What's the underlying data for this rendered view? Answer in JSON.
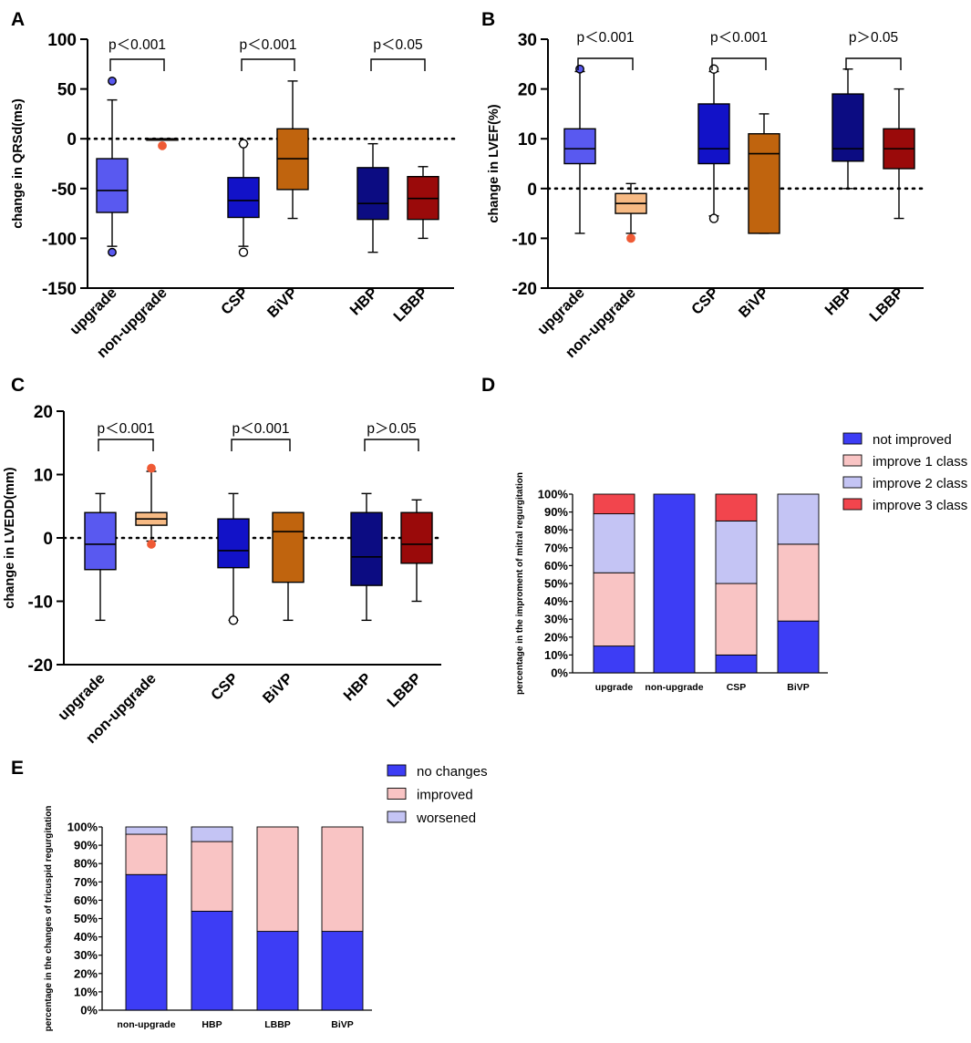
{
  "chart_data": [
    {
      "panel": "A",
      "type": "box",
      "ylabel": "change in QRSd(ms)",
      "ylim": [
        -150,
        100
      ],
      "yticks": [
        100,
        50,
        0,
        -50,
        -100,
        -150
      ],
      "reference_line": 0,
      "groups": [
        {
          "label": "upgrade",
          "color": "#5959F0",
          "whisker_low": -108,
          "q1": -74,
          "median": -52,
          "q3": -20,
          "whisker_high": 39,
          "outliers": [
            {
              "value": 58,
              "color": "#5959F0"
            },
            {
              "value": -114,
              "color": "#5959F0"
            }
          ]
        },
        {
          "label": "non-upgrade",
          "color": "#F7BA84",
          "whisker_low": 0,
          "q1": 0,
          "median": 0,
          "q3": 0,
          "whisker_high": 0,
          "outliers": [
            {
              "value": -7,
              "color": "#EF5A35"
            }
          ]
        },
        {
          "label": "CSP",
          "color": "#1212C8",
          "whisker_low": -108,
          "q1": -79,
          "median": -62,
          "q3": -39,
          "whisker_high": -5,
          "outliers": [
            {
              "value": -5,
              "color": "none"
            },
            {
              "value": -114,
              "color": "none"
            }
          ]
        },
        {
          "label": "BiVP",
          "color": "#C0640E",
          "whisker_low": -80,
          "q1": -51,
          "median": -20,
          "q3": 10,
          "whisker_high": 58,
          "outliers": []
        },
        {
          "label": "HBP",
          "color": "#0C0C82",
          "whisker_low": -114,
          "q1": -81,
          "median": -65,
          "q3": -29,
          "whisker_high": -5,
          "outliers": []
        },
        {
          "label": "LBBP",
          "color": "#9A0A0A",
          "whisker_low": -100,
          "q1": -81,
          "median": -60,
          "q3": -38,
          "whisker_high": -28,
          "outliers": []
        }
      ],
      "comparisons": [
        {
          "pair": [
            "upgrade",
            "non-upgrade"
          ],
          "label": "p＜0.001"
        },
        {
          "pair": [
            "CSP",
            "BiVP"
          ],
          "label": "p＜0.001"
        },
        {
          "pair": [
            "HBP",
            "LBBP"
          ],
          "label": "p＜0.05"
        }
      ]
    },
    {
      "panel": "B",
      "type": "box",
      "ylabel": "change in LVEF(%)",
      "ylim": [
        -20,
        30
      ],
      "yticks": [
        30,
        20,
        10,
        0,
        -10,
        -20
      ],
      "reference_line": 0,
      "groups": [
        {
          "label": "upgrade",
          "color": "#5959F0",
          "whisker_low": -9,
          "q1": 5,
          "median": 8,
          "q3": 12,
          "whisker_high": 23.5,
          "outliers": [
            {
              "value": 24,
              "color": "#5959F0"
            }
          ]
        },
        {
          "label": "non-upgrade",
          "color": "#F7BA84",
          "whisker_low": -9,
          "q1": -5,
          "median": -3,
          "q3": -1,
          "whisker_high": 1,
          "outliers": [
            {
              "value": -10,
              "color": "#EF5A35"
            }
          ]
        },
        {
          "label": "CSP",
          "color": "#1212C8",
          "whisker_low": -5.5,
          "q1": 5,
          "median": 8,
          "q3": 17,
          "whisker_high": 23.5,
          "outliers": [
            {
              "value": 24,
              "color": "none"
            },
            {
              "value": -6,
              "color": "none"
            }
          ]
        },
        {
          "label": "BiVP",
          "color": "#C0640E",
          "whisker_low": -9,
          "q1": -9,
          "median": 7,
          "q3": 11,
          "whisker_high": 15,
          "outliers": []
        },
        {
          "label": "HBP",
          "color": "#0C0C82",
          "whisker_low": 0,
          "q1": 5.5,
          "median": 8,
          "q3": 19,
          "whisker_high": 24,
          "outliers": []
        },
        {
          "label": "LBBP",
          "color": "#9A0A0A",
          "whisker_low": -6,
          "q1": 4,
          "median": 8,
          "q3": 12,
          "whisker_high": 20,
          "outliers": []
        }
      ],
      "comparisons": [
        {
          "pair": [
            "upgrade",
            "non-upgrade"
          ],
          "label": "p＜0.001"
        },
        {
          "pair": [
            "CSP",
            "BiVP"
          ],
          "label": "p＜0.001"
        },
        {
          "pair": [
            "HBP",
            "LBBP"
          ],
          "label": "p＞0.05"
        }
      ]
    },
    {
      "panel": "C",
      "type": "box",
      "ylabel": "change in LVEDD(mm)",
      "ylim": [
        -20,
        20
      ],
      "yticks": [
        20,
        10,
        0,
        -10,
        -20
      ],
      "reference_line": 0,
      "groups": [
        {
          "label": "upgrade",
          "color": "#5959F0",
          "whisker_low": -13,
          "q1": -5,
          "median": -1,
          "q3": 4,
          "whisker_high": 7,
          "outliers": []
        },
        {
          "label": "non-upgrade",
          "color": "#F7BA84",
          "whisker_low": -0.5,
          "q1": 2,
          "median": 3,
          "q3": 4,
          "whisker_high": 10.5,
          "outliers": [
            {
              "value": 11,
              "color": "#EF5A35"
            },
            {
              "value": -1,
              "color": "#EF5A35"
            }
          ]
        },
        {
          "label": "CSP",
          "color": "#1212C8",
          "whisker_low": -13,
          "q1": -4.7,
          "median": -2,
          "q3": 3,
          "whisker_high": 7,
          "outliers": [
            {
              "value": -13,
              "color": "none"
            }
          ]
        },
        {
          "label": "BiVP",
          "color": "#C0640E",
          "whisker_low": -13,
          "q1": -7,
          "median": 1,
          "q3": 4,
          "whisker_high": 4,
          "outliers": []
        },
        {
          "label": "HBP",
          "color": "#0C0C82",
          "whisker_low": -13,
          "q1": -7.5,
          "median": -3,
          "q3": 4,
          "whisker_high": 7,
          "outliers": []
        },
        {
          "label": "LBBP",
          "color": "#9A0A0A",
          "whisker_low": -10,
          "q1": -4,
          "median": -1,
          "q3": 4,
          "whisker_high": 6,
          "outliers": []
        }
      ],
      "comparisons": [
        {
          "pair": [
            "upgrade",
            "non-upgrade"
          ],
          "label": "p＜0.001"
        },
        {
          "pair": [
            "CSP",
            "BiVP"
          ],
          "label": "p＜0.001"
        },
        {
          "pair": [
            "HBP",
            "LBBP"
          ],
          "label": "p＞0.05"
        }
      ]
    },
    {
      "panel": "D",
      "type": "bar",
      "stacked": true,
      "ylabel": "percentage in the improment of mitral regurgitation",
      "ylim": [
        0,
        100
      ],
      "yticks": [
        "0%",
        "10%",
        "20%",
        "30%",
        "40%",
        "50%",
        "60%",
        "70%",
        "80%",
        "90%",
        "100%"
      ],
      "categories": [
        "upgrade",
        "non-upgrade",
        "CSP",
        "BiVP"
      ],
      "legend_position": "top-right",
      "series": [
        {
          "name": "not improved",
          "color": "#3D3DF5",
          "values": [
            15,
            100,
            10,
            29
          ]
        },
        {
          "name": "improve 1 class",
          "color": "#F9C4C4",
          "values": [
            41,
            0,
            40,
            43
          ]
        },
        {
          "name": "improve 2 class",
          "color": "#C4C4F4",
          "values": [
            33,
            0,
            35,
            28
          ]
        },
        {
          "name": "improve 3 class",
          "color": "#F2454D",
          "values": [
            11,
            0,
            15,
            0
          ]
        }
      ]
    },
    {
      "panel": "E",
      "type": "bar",
      "stacked": true,
      "ylabel": "percentage in the changes of tricuspid regurgitation",
      "ylim": [
        0,
        100
      ],
      "yticks": [
        "0%",
        "10%",
        "20%",
        "30%",
        "40%",
        "50%",
        "60%",
        "70%",
        "80%",
        "90%",
        "100%"
      ],
      "categories": [
        "non-upgrade",
        "HBP",
        "LBBP",
        "BiVP"
      ],
      "legend_position": "top-right",
      "series": [
        {
          "name": "no changes",
          "color": "#3D3DF5",
          "values": [
            74,
            54,
            43,
            43
          ]
        },
        {
          "name": "improved",
          "color": "#F9C4C4",
          "values": [
            22,
            38,
            57,
            57
          ]
        },
        {
          "name": "worsened",
          "color": "#C4C4F4",
          "values": [
            4,
            8,
            0,
            0
          ]
        }
      ]
    }
  ]
}
